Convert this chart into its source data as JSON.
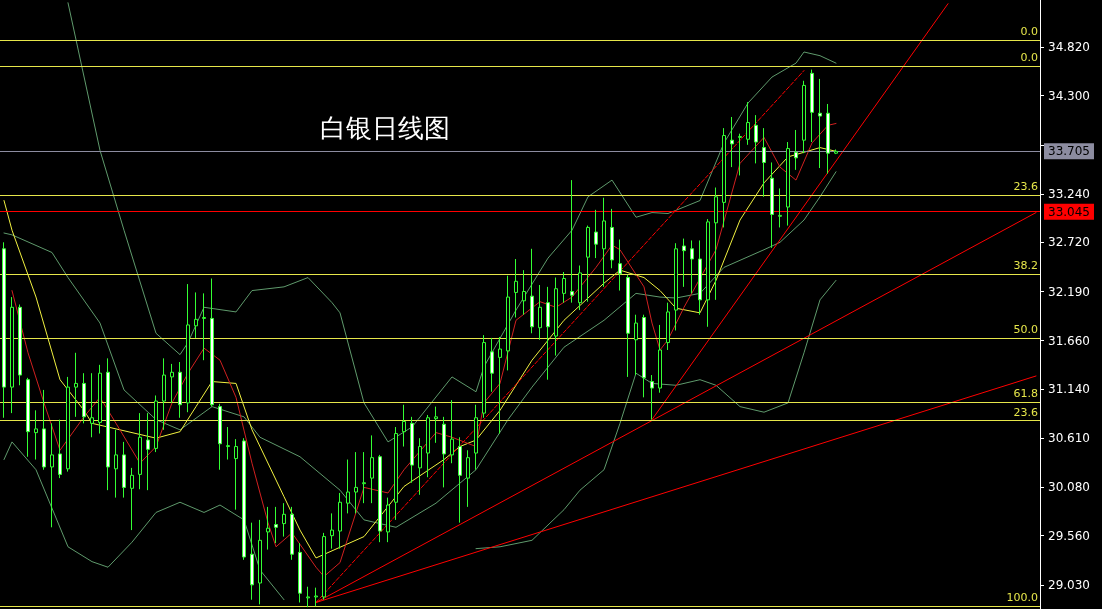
{
  "chart_data": {
    "type": "candlestick",
    "title": "白银日线图",
    "color": "#33ff33",
    "grid": false,
    "categories": [
      null,
      null,
      null,
      null,
      null,
      null,
      null,
      null,
      null,
      null,
      null,
      null,
      null,
      null,
      null,
      null,
      null,
      null,
      null,
      null,
      null,
      null,
      null,
      null,
      null,
      null,
      null,
      null,
      null,
      null,
      null,
      null,
      null,
      null,
      null,
      null,
      null,
      null,
      null,
      null,
      null,
      null,
      null,
      null,
      null,
      null,
      null,
      null,
      null,
      null,
      null,
      null,
      null,
      null,
      null,
      null,
      null,
      null,
      null,
      null,
      null,
      null,
      null,
      null,
      null,
      null,
      null,
      null,
      null,
      null,
      null,
      null,
      null,
      null,
      null,
      null,
      null,
      null,
      null,
      null,
      null,
      null,
      null,
      null,
      null,
      null,
      null,
      null,
      null,
      null,
      null,
      null,
      null,
      null,
      null,
      null,
      null,
      null,
      null,
      null,
      null,
      null,
      null,
      null,
      null,
      null,
      null,
      null,
      null,
      null,
      null,
      null,
      null,
      null,
      null,
      null,
      null,
      null,
      null,
      null,
      null,
      null,
      null,
      null,
      null,
      null,
      null,
      null,
      null,
      null
    ],
    "ohlc": [
      [
        32.65,
        32.72,
        30.83,
        31.16
      ],
      [
        31.16,
        32.13,
        30.88,
        32.02
      ],
      [
        32.02,
        32.05,
        31.18,
        31.29
      ],
      [
        31.24,
        31.26,
        30.41,
        30.68
      ],
      [
        30.67,
        30.91,
        30.38,
        30.71
      ],
      [
        30.71,
        31.13,
        30.27,
        30.3
      ],
      [
        30.3,
        30.77,
        29.65,
        30.43
      ],
      [
        30.44,
        30.81,
        30.18,
        30.22
      ],
      [
        30.28,
        31.27,
        30.25,
        31.16
      ],
      [
        31.16,
        31.53,
        30.84,
        31.2
      ],
      [
        31.2,
        31.31,
        30.77,
        30.84
      ],
      [
        30.77,
        31.31,
        30.62,
        30.83
      ],
      [
        30.78,
        31.4,
        30.66,
        31.31
      ],
      [
        31.32,
        31.47,
        30.05,
        30.3
      ],
      [
        30.28,
        30.7,
        29.97,
        30.43
      ],
      [
        30.43,
        30.57,
        29.97,
        30.08
      ],
      [
        30.07,
        30.29,
        29.62,
        30.21
      ],
      [
        30.22,
        30.88,
        30.06,
        30.62
      ],
      [
        30.59,
        30.88,
        30.05,
        30.49
      ],
      [
        30.5,
        31.07,
        30.46,
        31.01
      ],
      [
        31.01,
        31.47,
        30.7,
        31.29
      ],
      [
        31.27,
        31.41,
        30.99,
        31.32
      ],
      [
        31.32,
        31.43,
        30.83,
        30.97
      ],
      [
        30.99,
        32.27,
        30.89,
        31.83
      ],
      [
        31.82,
        32.18,
        31.69,
        31.89
      ],
      [
        31.9,
        32.17,
        31.45,
        31.91
      ],
      [
        31.9,
        32.33,
        30.95,
        30.97
      ],
      [
        30.95,
        30.98,
        30.27,
        30.55
      ],
      [
        30.52,
        30.73,
        30.38,
        30.53
      ],
      [
        30.39,
        30.6,
        29.84,
        30.52
      ],
      [
        30.58,
        30.61,
        29.3,
        29.33
      ],
      [
        29.36,
        29.7,
        28.87,
        29.03
      ],
      [
        29.05,
        29.73,
        28.82,
        29.51
      ],
      [
        29.6,
        29.87,
        29.41,
        29.64
      ],
      [
        29.68,
        29.87,
        29.48,
        29.65
      ],
      [
        29.69,
        29.91,
        29.55,
        29.79
      ],
      [
        29.79,
        29.87,
        29.3,
        29.36
      ],
      [
        29.38,
        29.48,
        28.84,
        28.94
      ],
      [
        28.89,
        29.01,
        28.79,
        28.9
      ],
      [
        28.9,
        29.0,
        28.8,
        28.91
      ],
      [
        28.9,
        29.59,
        28.87,
        29.55
      ],
      [
        29.56,
        29.8,
        29.42,
        29.62
      ],
      [
        29.61,
        30.02,
        29.42,
        29.92
      ],
      [
        29.91,
        30.38,
        29.8,
        30.03
      ],
      [
        30.03,
        30.46,
        29.8,
        30.08
      ],
      [
        30.12,
        30.46,
        29.91,
        30.13
      ],
      [
        30.18,
        30.64,
        29.91,
        30.4
      ],
      [
        30.41,
        30.43,
        29.49,
        29.61
      ],
      [
        29.6,
        29.97,
        29.49,
        29.89
      ],
      [
        29.92,
        30.73,
        29.73,
        30.66
      ],
      [
        30.68,
        30.97,
        30.52,
        30.79
      ],
      [
        30.77,
        30.84,
        30.13,
        30.32
      ],
      [
        30.29,
        30.61,
        30.0,
        30.52
      ],
      [
        30.45,
        30.86,
        30.19,
        30.83
      ],
      [
        30.82,
        30.95,
        30.56,
        30.84
      ],
      [
        30.76,
        30.84,
        30.08,
        30.44
      ],
      [
        30.43,
        31.02,
        30.34,
        30.6
      ],
      [
        30.52,
        30.62,
        29.7,
        30.21
      ],
      [
        30.18,
        30.48,
        29.87,
        30.4
      ],
      [
        30.45,
        30.97,
        30.27,
        30.83
      ],
      [
        30.88,
        31.72,
        30.83,
        31.64
      ],
      [
        31.54,
        31.69,
        31.11,
        31.31
      ],
      [
        31.48,
        31.7,
        30.66,
        31.57
      ],
      [
        31.55,
        32.36,
        31.34,
        32.13
      ],
      [
        32.18,
        32.54,
        31.91,
        32.3
      ],
      [
        32.09,
        32.42,
        31.94,
        32.19
      ],
      [
        32.14,
        32.65,
        31.74,
        31.81
      ],
      [
        31.8,
        32.26,
        31.67,
        32.02
      ],
      [
        32.07,
        32.24,
        31.24,
        31.81
      ],
      [
        31.71,
        32.34,
        31.5,
        32.22
      ],
      [
        32.17,
        32.4,
        32.07,
        32.33
      ],
      [
        32.19,
        33.39,
        32.07,
        32.15
      ],
      [
        32.07,
        32.47,
        31.99,
        32.39
      ],
      [
        32.56,
        32.9,
        32.08,
        32.88
      ],
      [
        32.83,
        33.07,
        32.55,
        32.7
      ],
      [
        32.65,
        33.2,
        32.24,
        32.95
      ],
      [
        32.88,
        33.08,
        32.44,
        32.53
      ],
      [
        32.49,
        32.75,
        32.2,
        32.38
      ],
      [
        32.34,
        32.37,
        31.27,
        31.74
      ],
      [
        31.67,
        31.94,
        31.29,
        31.85
      ],
      [
        31.91,
        31.94,
        31.05,
        31.26
      ],
      [
        31.22,
        31.29,
        30.81,
        31.15
      ],
      [
        31.15,
        31.83,
        31.1,
        31.56
      ],
      [
        31.64,
        32.07,
        31.56,
        31.97
      ],
      [
        31.99,
        32.71,
        31.77,
        32.65
      ],
      [
        32.68,
        32.76,
        32.24,
        32.63
      ],
      [
        32.65,
        32.74,
        32.17,
        32.54
      ],
      [
        32.54,
        32.74,
        31.94,
        32.1
      ],
      [
        32.1,
        32.97,
        31.81,
        32.94
      ],
      [
        32.93,
        33.31,
        32.1,
        33.21
      ],
      [
        33.15,
        33.95,
        32.88,
        33.87
      ],
      [
        33.82,
        34.07,
        33.53,
        33.78
      ],
      [
        33.85,
        33.89,
        33.44,
        33.86
      ],
      [
        33.83,
        34.23,
        33.77,
        34.01
      ],
      [
        33.98,
        34.09,
        33.57,
        33.8
      ],
      [
        33.74,
        33.95,
        33.21,
        33.58
      ],
      [
        33.41,
        33.58,
        32.66,
        33.02
      ],
      [
        33.0,
        33.3,
        32.88,
        33.01
      ],
      [
        33.1,
        33.8,
        32.9,
        33.73
      ],
      [
        33.69,
        33.93,
        33.5,
        33.63
      ],
      [
        33.82,
        34.46,
        33.68,
        34.41
      ],
      [
        34.54,
        34.58,
        33.8,
        34.12
      ],
      [
        34.11,
        34.48,
        33.52,
        34.08
      ],
      [
        34.11,
        34.21,
        33.46,
        33.68
      ],
      [
        33.68,
        33.72,
        33.67,
        33.7
      ],
      null,
      null,
      null,
      null,
      null,
      null,
      null,
      null,
      null,
      null,
      null,
      null,
      null,
      null,
      null,
      null,
      null,
      null,
      null,
      null,
      null,
      null,
      null,
      null,
      null
    ],
    "series": [
      {
        "type": "line",
        "color": "#5f9a6c",
        "values": [
          null,
          null,
          null,
          null,
          null,
          null,
          null,
          null,
          35.3,
          null,
          null,
          null,
          33.71,
          null,
          null,
          32.85,
          null,
          null,
          null,
          31.74,
          null,
          null,
          31.51,
          31.64,
          null,
          32.02,
          null,
          null,
          null,
          31.97,
          null,
          32.2,
          null,
          null,
          null,
          32.24,
          null,
          null,
          32.34,
          null,
          null,
          32.07,
          31.96,
          null,
          null,
          30.99,
          null,
          null,
          30.57,
          null,
          null,
          30.73,
          null,
          null,
          null,
          null,
          31.27,
          null,
          null,
          31.11,
          31.38,
          null,
          null,
          null,
          31.99,
          null,
          null,
          null,
          32.55,
          null,
          null,
          32.85,
          null,
          33.21,
          null,
          null,
          33.39,
          null,
          null,
          32.99,
          null,
          33.04,
          null,
          33.03,
          null,
          null,
          null,
          33.17,
          null,
          null,
          33.79,
          null,
          null,
          34.22,
          null,
          null,
          34.5,
          null,
          null,
          34.65,
          34.77,
          null,
          34.73,
          null,
          34.65,
          null,
          null,
          null,
          null,
          null,
          null,
          null,
          null,
          null,
          null,
          null,
          null,
          null,
          null,
          null,
          null,
          null,
          null,
          null,
          null,
          null,
          null,
          null,
          null,
          null
        ]
      },
      {
        "type": "line",
        "color": "#5f9a6c",
        "values": [
          32.82,
          32.8,
          null,
          null,
          null,
          null,
          32.61,
          null,
          32.34,
          null,
          null,
          null,
          31.85,
          null,
          null,
          31.13,
          null,
          null,
          null,
          30.81,
          null,
          null,
          30.7,
          null,
          null,
          null,
          30.95,
          null,
          null,
          null,
          30.84,
          null,
          30.62,
          null,
          null,
          null,
          null,
          30.41,
          null,
          null,
          null,
          null,
          30.05,
          null,
          null,
          29.73,
          null,
          null,
          null,
          29.65,
          null,
          null,
          null,
          null,
          29.91,
          null,
          null,
          null,
          null,
          30.27,
          null,
          null,
          null,
          30.81,
          null,
          null,
          31.16,
          null,
          null,
          null,
          31.59,
          null,
          null,
          null,
          null,
          31.88,
          null,
          null,
          null,
          32.17,
          null,
          null,
          32.13,
          null,
          32.12,
          null,
          null,
          32.17,
          null,
          null,
          32.45,
          null,
          null,
          null,
          null,
          32.64,
          null,
          32.72,
          null,
          null,
          32.96,
          null,
          33.21,
          null,
          33.48,
          null,
          null,
          null,
          null,
          null,
          null,
          null,
          null,
          null,
          null,
          null,
          null,
          null,
          null,
          null,
          null,
          null,
          null,
          null,
          null,
          null,
          null,
          null,
          null,
          null
        ]
      },
      {
        "type": "line",
        "color": "#5f9a6c",
        "values": [
          30.38,
          30.57,
          null,
          null,
          30.27,
          null,
          null,
          null,
          29.44,
          null,
          null,
          29.28,
          null,
          29.22,
          null,
          null,
          29.49,
          null,
          null,
          29.81,
          null,
          null,
          29.92,
          null,
          null,
          29.81,
          null,
          29.89,
          null,
          null,
          29.73,
          null,
          29.19,
          null,
          null,
          28.87,
          null,
          null,
          null,
          null,
          null,
          null,
          null,
          null,
          null,
          null,
          null,
          null,
          null,
          null,
          null,
          null,
          null,
          null,
          null,
          null,
          null,
          null,
          null,
          null,
          null,
          null,
          null,
          null,
          null,
          null,
          null,
          null,
          null,
          null,
          null,
          null,
          null,
          null,
          null,
          null,
          null,
          null,
          null,
          null,
          null,
          null,
          null,
          null,
          null,
          null,
          null,
          null,
          null,
          null,
          null,
          null,
          null,
          null,
          null,
          null,
          null,
          null,
          null,
          null,
          null,
          null,
          null,
          null,
          null,
          null,
          null,
          null,
          null,
          null,
          null,
          null,
          null,
          null,
          null,
          null,
          null,
          null,
          null,
          null,
          null,
          null,
          null,
          null,
          null,
          null,
          null,
          null,
          null,
          null
        ]
      },
      {
        "type": "line",
        "color": "#5f9a6c",
        "values": [
          null,
          null,
          null,
          null,
          null,
          null,
          null,
          null,
          null,
          null,
          null,
          null,
          null,
          null,
          null,
          null,
          null,
          null,
          null,
          null,
          null,
          null,
          null,
          null,
          null,
          null,
          null,
          null,
          null,
          null,
          null,
          null,
          null,
          null,
          null,
          null,
          null,
          null,
          null,
          null,
          null,
          null,
          null,
          null,
          null,
          null,
          null,
          null,
          null,
          null,
          null,
          null,
          null,
          null,
          null,
          null,
          null,
          null,
          null,
          29.42,
          null,
          null,
          29.44,
          null,
          null,
          null,
          29.51,
          null,
          null,
          null,
          29.84,
          null,
          30.05,
          null,
          null,
          30.27,
          null,
          30.77,
          null,
          31.31,
          null,
          31.2,
          null,
          null,
          31.18,
          null,
          null,
          31.24,
          null,
          31.18,
          null,
          null,
          30.95,
          null,
          null,
          30.89,
          null,
          null,
          30.99,
          null,
          31.53,
          null,
          32.1,
          null,
          32.31,
          null,
          null,
          null,
          null,
          null,
          null,
          null,
          null,
          null,
          null,
          null,
          null,
          null,
          null,
          null,
          null,
          null,
          null,
          null,
          null,
          null,
          null,
          null,
          null,
          null
        ]
      },
      {
        "type": "line",
        "color": "#f0f040",
        "values": [
          33.17,
          32.85,
          null,
          null,
          32.13,
          null,
          null,
          31.24,
          null,
          null,
          30.91,
          30.77,
          null,
          null,
          null,
          null,
          30.67,
          null,
          null,
          30.61,
          null,
          null,
          30.68,
          null,
          30.95,
          null,
          31.22,
          null,
          null,
          31.2,
          null,
          30.7,
          null,
          null,
          null,
          29.98,
          null,
          29.62,
          null,
          29.32,
          null,
          null,
          null,
          null,
          null,
          29.55,
          null,
          null,
          null,
          null,
          30.09,
          null,
          null,
          null,
          null,
          30.38,
          null,
          30.52,
          null,
          30.59,
          null,
          null,
          30.91,
          null,
          null,
          null,
          31.45,
          null,
          null,
          null,
          31.88,
          null,
          null,
          null,
          null,
          32.28,
          null,
          32.42,
          null,
          null,
          32.34,
          null,
          32.2,
          null,
          32.01,
          null,
          null,
          31.96,
          null,
          32.31,
          null,
          null,
          32.96,
          null,
          null,
          33.36,
          null,
          null,
          33.64,
          null,
          null,
          null,
          33.74,
          null,
          33.7,
          null,
          null,
          null,
          null,
          null,
          null,
          null,
          null,
          null,
          null,
          null,
          null,
          null,
          null,
          null,
          null,
          null,
          null,
          null,
          null,
          null,
          null,
          null,
          null,
          null
        ]
      },
      {
        "type": "line",
        "color": "#d02020",
        "values": [
          null,
          32.2,
          null,
          31.53,
          null,
          30.99,
          null,
          30.48,
          null,
          null,
          30.84,
          null,
          31.05,
          null,
          30.77,
          null,
          null,
          30.34,
          null,
          30.52,
          null,
          30.99,
          null,
          31.31,
          null,
          31.58,
          null,
          31.45,
          null,
          31.05,
          null,
          30.34,
          null,
          29.7,
          29.44,
          null,
          29.59,
          null,
          null,
          29.22,
          29.12,
          null,
          29.27,
          null,
          null,
          30.08,
          null,
          null,
          30.02,
          null,
          30.27,
          null,
          null,
          null,
          30.67,
          null,
          30.62,
          null,
          null,
          30.52,
          30.99,
          null,
          31.2,
          null,
          31.88,
          null,
          null,
          32.08,
          null,
          32.02,
          null,
          32.13,
          null,
          null,
          32.45,
          null,
          32.69,
          32.64,
          null,
          null,
          32.24,
          31.85,
          31.56,
          31.67,
          null,
          32.02,
          null,
          null,
          null,
          32.64,
          null,
          null,
          33.57,
          null,
          null,
          33.85,
          null,
          33.53,
          null,
          33.39,
          null,
          33.79,
          null,
          33.98,
          34.0,
          null,
          null,
          null,
          null,
          null,
          null,
          null,
          null,
          null,
          null,
          null,
          null,
          null,
          null,
          null,
          null,
          null,
          null,
          null,
          null,
          null,
          null,
          null,
          null,
          null
        ]
      },
      {
        "type": "line",
        "color": "#ff0000",
        "values": [
          null,
          null,
          null,
          null,
          null,
          null,
          null,
          null,
          null,
          null,
          null,
          null,
          null,
          null,
          null,
          null,
          null,
          null,
          null,
          null,
          null,
          null,
          null,
          null,
          null,
          null,
          null,
          null,
          null,
          null,
          null,
          null,
          null,
          null,
          null,
          null,
          null,
          null,
          null,
          28.84,
          null,
          null,
          null,
          null,
          null,
          null,
          null,
          null,
          null,
          null,
          null,
          null,
          null,
          null,
          null,
          null,
          null,
          null,
          null,
          null,
          null,
          null,
          null,
          null,
          null,
          null,
          null,
          null,
          null,
          null,
          null,
          null,
          null,
          null,
          null,
          null,
          null,
          null,
          null,
          null,
          null,
          null,
          null,
          null,
          null,
          null,
          null,
          null,
          null,
          null,
          null,
          null,
          null,
          null,
          null,
          null,
          null,
          null,
          null,
          null,
          null,
          null,
          null,
          null,
          null,
          null,
          null,
          null,
          null,
          null,
          null,
          null,
          null,
          null,
          null,
          null,
          null,
          null,
          null,
          null,
          null,
          null,
          null,
          null,
          null,
          null,
          null,
          null,
          null,
          33.04
        ]
      },
      {
        "type": "line",
        "color": "#ff0000",
        "values": [
          null,
          null,
          null,
          null,
          null,
          null,
          null,
          null,
          null,
          null,
          null,
          null,
          null,
          null,
          null,
          null,
          null,
          null,
          null,
          null,
          null,
          null,
          null,
          null,
          null,
          null,
          null,
          null,
          null,
          null,
          null,
          null,
          null,
          null,
          null,
          null,
          null,
          null,
          null,
          28.84,
          null,
          null,
          null,
          null,
          null,
          null,
          null,
          null,
          null,
          null,
          null,
          null,
          null,
          null,
          null,
          null,
          null,
          null,
          null,
          null,
          null,
          null,
          null,
          null,
          null,
          null,
          null,
          null,
          null,
          null,
          null,
          null,
          null,
          null,
          null,
          null,
          null,
          null,
          null,
          null,
          null,
          null,
          null,
          null,
          null,
          null,
          null,
          null,
          null,
          null,
          null,
          null,
          null,
          null,
          null,
          null,
          null,
          null,
          null,
          null,
          null,
          null,
          null,
          null,
          null,
          null,
          null,
          null,
          null,
          null,
          null,
          null,
          null,
          null,
          null,
          null,
          null,
          null,
          null,
          null,
          null,
          null,
          null,
          null,
          null,
          null,
          null,
          null,
          null,
          31.28
        ]
      },
      {
        "type": "line",
        "color": "#ff0000",
        "values": [
          null,
          null,
          null,
          null,
          null,
          null,
          null,
          null,
          null,
          null,
          null,
          null,
          null,
          null,
          null,
          null,
          null,
          null,
          null,
          null,
          null,
          null,
          null,
          null,
          null,
          null,
          null,
          null,
          null,
          null,
          null,
          null,
          null,
          null,
          null,
          null,
          null,
          null,
          null,
          null,
          null,
          null,
          null,
          null,
          null,
          null,
          null,
          null,
          null,
          null,
          null,
          null,
          null,
          null,
          null,
          null,
          null,
          null,
          null,
          null,
          null,
          null,
          null,
          null,
          null,
          null,
          null,
          null,
          null,
          null,
          null,
          null,
          null,
          null,
          null,
          null,
          null,
          null,
          null,
          null,
          null,
          30.81,
          null,
          null,
          null,
          null,
          null,
          null,
          null,
          null,
          null,
          null,
          null,
          null,
          null,
          null,
          null,
          null,
          null,
          null,
          null,
          null,
          null,
          null,
          null,
          null,
          null,
          null,
          null,
          null,
          null,
          null,
          null,
          null,
          null,
          null,
          null,
          null,
          35.29,
          null,
          null,
          null,
          null,
          null,
          null,
          null,
          null,
          null,
          null,
          null
        ]
      },
      {
        "type": "line",
        "color": "#ff0000",
        "line_style": "dashed",
        "values": [
          null,
          null,
          null,
          null,
          null,
          null,
          null,
          null,
          null,
          null,
          null,
          null,
          null,
          null,
          null,
          null,
          null,
          null,
          null,
          null,
          null,
          null,
          null,
          null,
          null,
          null,
          null,
          null,
          null,
          null,
          null,
          null,
          null,
          null,
          null,
          null,
          null,
          null,
          null,
          28.84,
          null,
          null,
          null,
          null,
          null,
          null,
          null,
          null,
          null,
          null,
          null,
          null,
          null,
          null,
          null,
          null,
          null,
          null,
          null,
          null,
          null,
          null,
          null,
          null,
          null,
          null,
          null,
          null,
          null,
          null,
          null,
          null,
          null,
          null,
          null,
          null,
          null,
          null,
          null,
          null,
          null,
          null,
          null,
          null,
          null,
          null,
          null,
          null,
          null,
          null,
          null,
          null,
          null,
          null,
          null,
          null,
          null,
          null,
          null,
          null,
          34.57,
          null,
          null,
          null,
          null,
          null,
          null,
          null,
          null,
          null,
          null,
          null,
          null,
          null,
          null,
          null,
          null,
          null,
          null,
          null,
          null,
          null,
          null,
          null,
          null,
          null,
          null,
          null,
          null,
          null
        ]
      }
    ],
    "ylim": [
      28.77,
      35.33
    ],
    "yticks": [
      {
        "value": 34.82,
        "label": "34.820"
      },
      {
        "value": 34.3,
        "label": "34.300"
      },
      {
        "value": 33.77,
        "label": null
      },
      {
        "value": 33.24,
        "label": "33.240"
      },
      {
        "value": 32.72,
        "label": "32.720"
      },
      {
        "value": 32.19,
        "label": "32.190"
      },
      {
        "value": 31.66,
        "label": "31.660"
      },
      {
        "value": 31.14,
        "label": "31.140"
      },
      {
        "value": 30.61,
        "label": "30.610"
      },
      {
        "value": 30.08,
        "label": "30.080"
      },
      {
        "value": 29.56,
        "label": "29.560"
      },
      {
        "value": 29.03,
        "label": "29.030"
      }
    ],
    "annotations": [
      {
        "text": "0.0",
        "y": 34.9
      },
      {
        "text": "0.0",
        "y": 34.62
      },
      {
        "text": "23.6",
        "y": 33.23
      },
      {
        "text": "38.2",
        "y": 32.38
      },
      {
        "text": "50.0",
        "y": 31.69
      },
      {
        "text": "61.8",
        "y": 31.0
      },
      {
        "text": "23.6",
        "y": 30.8
      },
      {
        "text": "100.0",
        "y": 28.8
      }
    ],
    "ref_lines": [
      {
        "axis": "y",
        "value": 34.9,
        "color": "#e6e64a"
      },
      {
        "axis": "y",
        "value": 34.62,
        "color": "#e6e64a"
      },
      {
        "axis": "y",
        "value": 33.23,
        "color": "#e6e64a"
      },
      {
        "axis": "y",
        "value": 32.38,
        "color": "#e6e64a"
      },
      {
        "axis": "y",
        "value": 31.69,
        "color": "#e6e64a"
      },
      {
        "axis": "y",
        "value": 31.0,
        "color": "#e6e64a"
      },
      {
        "axis": "y",
        "value": 30.8,
        "color": "#e6e64a"
      },
      {
        "axis": "y",
        "value": 28.8,
        "color": "#e6e64a"
      },
      {
        "axis": "y",
        "value": 33.045,
        "label": "33.045",
        "color": "#ff0000"
      },
      {
        "axis": "y",
        "value": 33.705,
        "label": "33.705",
        "color": "#8c8ca0"
      }
    ]
  }
}
